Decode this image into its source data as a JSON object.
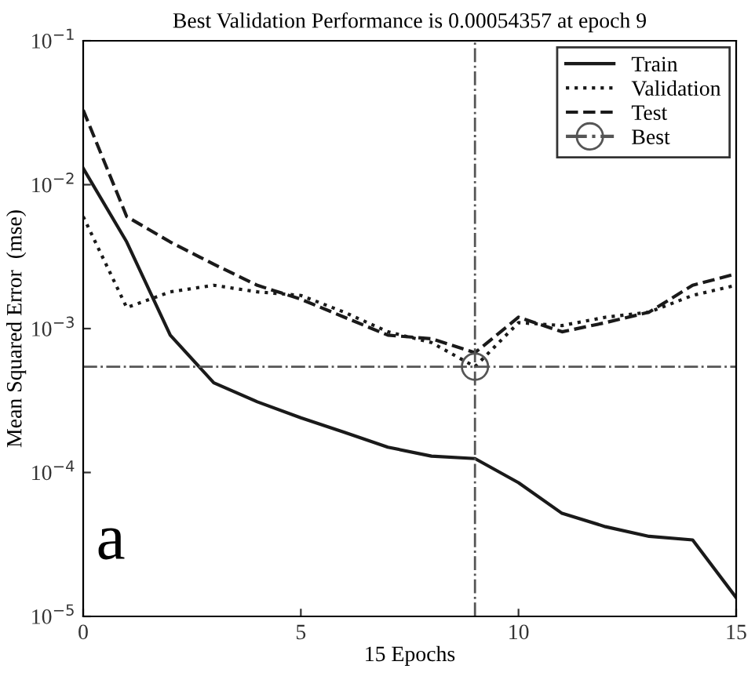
{
  "chart_data": {
    "type": "line",
    "title": "Best Validation Performance is 0.00054357 at epoch 9",
    "xlabel": "15 Epochs",
    "ylabel": "Mean Squared Error  (mse)",
    "x": [
      0,
      1,
      2,
      3,
      4,
      5,
      6,
      7,
      8,
      9,
      10,
      11,
      12,
      13,
      14,
      15
    ],
    "series": [
      {
        "name": "Train",
        "color": "#1a1a1a",
        "line_style": "solid",
        "values": [
          0.013,
          0.004,
          0.0009,
          0.00042,
          0.00031,
          0.00024,
          0.00019,
          0.00015,
          0.00013,
          0.000125,
          8.5e-05,
          5.2e-05,
          4.2e-05,
          3.6e-05,
          3.4e-05,
          1.35e-05
        ]
      },
      {
        "name": "Validation",
        "color": "#1a1a1a",
        "line_style": "dotted",
        "values": [
          0.006,
          0.0014,
          0.0018,
          0.002,
          0.0018,
          0.0017,
          0.0013,
          0.00095,
          0.0008,
          0.00054357,
          0.0011,
          0.00105,
          0.0012,
          0.0013,
          0.0017,
          0.002
        ]
      },
      {
        "name": "Test",
        "color": "#1a1a1a",
        "line_style": "dashed",
        "values": [
          0.033,
          0.006,
          0.004,
          0.0028,
          0.002,
          0.0016,
          0.0012,
          0.0009,
          0.00085,
          0.00068,
          0.0012,
          0.00095,
          0.0011,
          0.0013,
          0.002,
          0.0024
        ]
      },
      {
        "name": "Best",
        "color": "#555555",
        "line_style": "dashdot",
        "marker": "circle",
        "x": [
          9
        ],
        "values": [
          0.00054357
        ]
      }
    ],
    "ref_lines": [
      {
        "axis": "x",
        "value": 9,
        "color": "#555555",
        "line_style": "dashdot"
      },
      {
        "axis": "y",
        "value": 0.00054357,
        "color": "#555555",
        "line_style": "dashdot"
      }
    ],
    "log": "y",
    "xlim": [
      0,
      15
    ],
    "ylim": [
      1e-05,
      0.1
    ],
    "xticks": [
      0,
      5,
      10,
      15
    ],
    "yticks": [
      {
        "value": 0.1,
        "label": "10$^{−1}$"
      },
      {
        "value": 0.01,
        "label": "10$^{−2}$"
      },
      {
        "value": 0.001,
        "label": "10$^{−3}$"
      },
      {
        "value": 0.0001,
        "label": "10$^{−4}$"
      },
      {
        "value": 1e-05,
        "label": "10$^{−5}$"
      }
    ],
    "grid": false,
    "legend": "top right",
    "annotations": [
      "a"
    ]
  }
}
